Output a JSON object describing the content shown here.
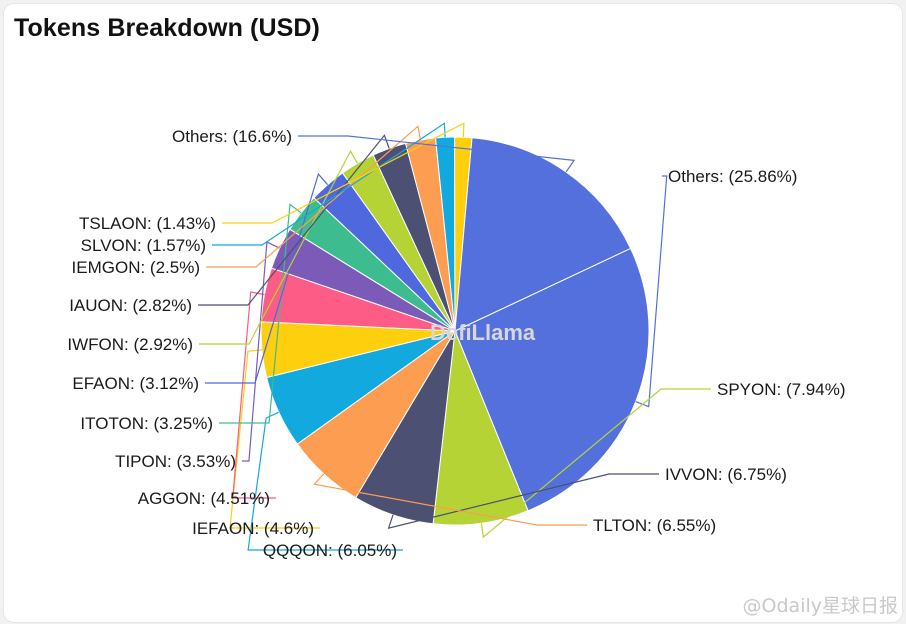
{
  "title": "Tokens Breakdown (USD)",
  "watermark": "DefiLlama",
  "footer_watermark": "@Odaily星球日报",
  "chart_data": {
    "type": "pie",
    "title": "Tokens Breakdown (USD)",
    "slices": [
      {
        "name": "Others",
        "label": "Others: (25.86%)",
        "value": 25.86,
        "color": "#5470dd"
      },
      {
        "name": "SPYON",
        "label": "SPYON: (7.94%)",
        "value": 7.94,
        "color": "#b5d334"
      },
      {
        "name": "IVVON",
        "label": "IVVON: (6.75%)",
        "value": 6.75,
        "color": "#4c5072"
      },
      {
        "name": "TLTON",
        "label": "TLTON: (6.55%)",
        "value": 6.55,
        "color": "#fc9d52"
      },
      {
        "name": "QQQON",
        "label": "QQQON: (6.05%)",
        "value": 6.05,
        "color": "#11a9de"
      },
      {
        "name": "IEFAON",
        "label": "IEFAON: (4.6%)",
        "value": 4.6,
        "color": "#fecf0d"
      },
      {
        "name": "AGGON",
        "label": "AGGON: (4.51%)",
        "value": 4.51,
        "color": "#fc5c86"
      },
      {
        "name": "TIPON",
        "label": "TIPON: (3.53%)",
        "value": 3.53,
        "color": "#7c5ab7"
      },
      {
        "name": "ITOTON",
        "label": "ITOTON: (3.25%)",
        "value": 3.25,
        "color": "#3dbd8f"
      },
      {
        "name": "EFAON",
        "label": "EFAON: (3.12%)",
        "value": 3.12,
        "color": "#4f68de"
      },
      {
        "name": "IWFON",
        "label": "IWFON: (2.92%)",
        "value": 2.92,
        "color": "#b5d334"
      },
      {
        "name": "IAUON",
        "label": "IAUON: (2.82%)",
        "value": 2.82,
        "color": "#4c5072"
      },
      {
        "name": "IEMGON",
        "label": "IEMGON: (2.5%)",
        "value": 2.5,
        "color": "#fc9d52"
      },
      {
        "name": "SLVON",
        "label": "SLVON: (1.57%)",
        "value": 1.57,
        "color": "#11a9de"
      },
      {
        "name": "TSLAON",
        "label": "TSLAON: (1.43%)",
        "value": 1.43,
        "color": "#fecf0d"
      },
      {
        "name": "Others",
        "label": "Others: (16.6%)",
        "value": 16.6,
        "color": "#5470dd"
      }
    ]
  }
}
